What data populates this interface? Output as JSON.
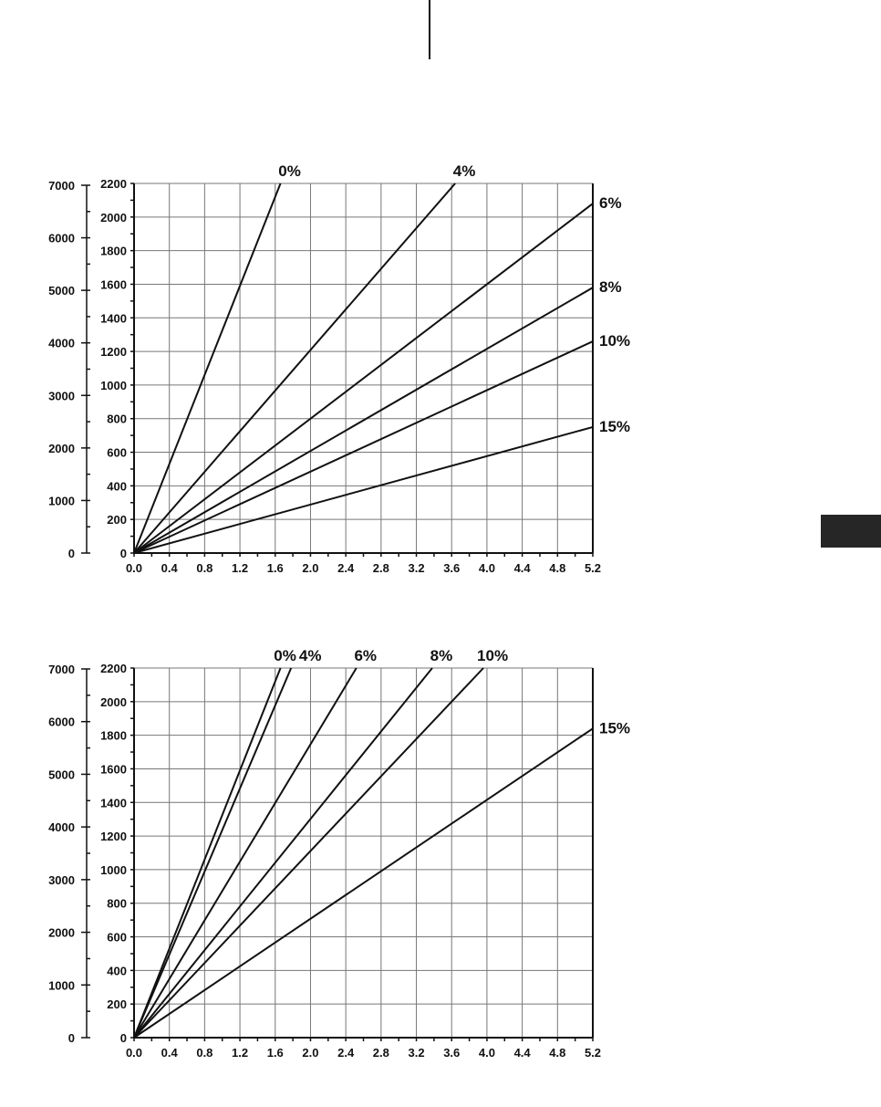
{
  "chart_data": [
    {
      "type": "line",
      "xlabel": "",
      "ylabel": "",
      "xlim": [
        0,
        5.2
      ],
      "ylim": [
        0,
        2200
      ],
      "ylim_outer": [
        0,
        7000
      ],
      "grid": true,
      "x_ticks": [
        "0.0",
        "0.4",
        "0.8",
        "1.2",
        "1.6",
        "2.0",
        "2.4",
        "2.8",
        "3.2",
        "3.6",
        "4.0",
        "4.4",
        "4.8",
        "5.2"
      ],
      "y_ticks_inner": [
        "0",
        "200",
        "400",
        "600",
        "800",
        "1000",
        "1200",
        "1400",
        "1600",
        "1800",
        "2000",
        "2200"
      ],
      "y_ticks_outer": [
        "0",
        "1000",
        "2000",
        "3000",
        "4000",
        "5000",
        "6000",
        "7000"
      ],
      "series": [
        {
          "name": "0%",
          "x": [
            0.0,
            1.66
          ],
          "y": [
            0,
            2200
          ]
        },
        {
          "name": "4%",
          "x": [
            0.0,
            3.64
          ],
          "y": [
            0,
            2200
          ]
        },
        {
          "name": "6%",
          "x": [
            0.0,
            5.2
          ],
          "y": [
            0,
            2080
          ]
        },
        {
          "name": "8%",
          "x": [
            0.0,
            5.2
          ],
          "y": [
            0,
            1580
          ]
        },
        {
          "name": "10%",
          "x": [
            0.0,
            5.2
          ],
          "y": [
            0,
            1260
          ]
        },
        {
          "name": "15%",
          "x": [
            0.0,
            5.2
          ],
          "y": [
            0,
            750
          ]
        }
      ]
    },
    {
      "type": "line",
      "xlabel": "",
      "ylabel": "",
      "xlim": [
        0,
        5.2
      ],
      "ylim": [
        0,
        2200
      ],
      "ylim_outer": [
        0,
        7000
      ],
      "grid": true,
      "x_ticks": [
        "0.0",
        "0.4",
        "0.8",
        "1.2",
        "1.6",
        "2.0",
        "2.4",
        "2.8",
        "3.2",
        "3.6",
        "4.0",
        "4.4",
        "4.8",
        "5.2"
      ],
      "y_ticks_inner": [
        "0",
        "200",
        "400",
        "600",
        "800",
        "1000",
        "1200",
        "1400",
        "1600",
        "1800",
        "2000",
        "2200"
      ],
      "y_ticks_outer": [
        "0",
        "1000",
        "2000",
        "3000",
        "4000",
        "5000",
        "6000",
        "7000"
      ],
      "series": [
        {
          "name": "0%",
          "x": [
            0.0,
            1.66
          ],
          "y": [
            0,
            2200
          ]
        },
        {
          "name": "4%",
          "x": [
            0.0,
            1.78
          ],
          "y": [
            0,
            2200
          ]
        },
        {
          "name": "6%",
          "x": [
            0.0,
            2.52
          ],
          "y": [
            0,
            2200
          ]
        },
        {
          "name": "8%",
          "x": [
            0.0,
            3.38
          ],
          "y": [
            0,
            2200
          ]
        },
        {
          "name": "10%",
          "x": [
            0.0,
            3.96
          ],
          "y": [
            0,
            2200
          ]
        },
        {
          "name": "15%",
          "x": [
            0.0,
            5.2
          ],
          "y": [
            0,
            1840
          ]
        }
      ]
    }
  ]
}
